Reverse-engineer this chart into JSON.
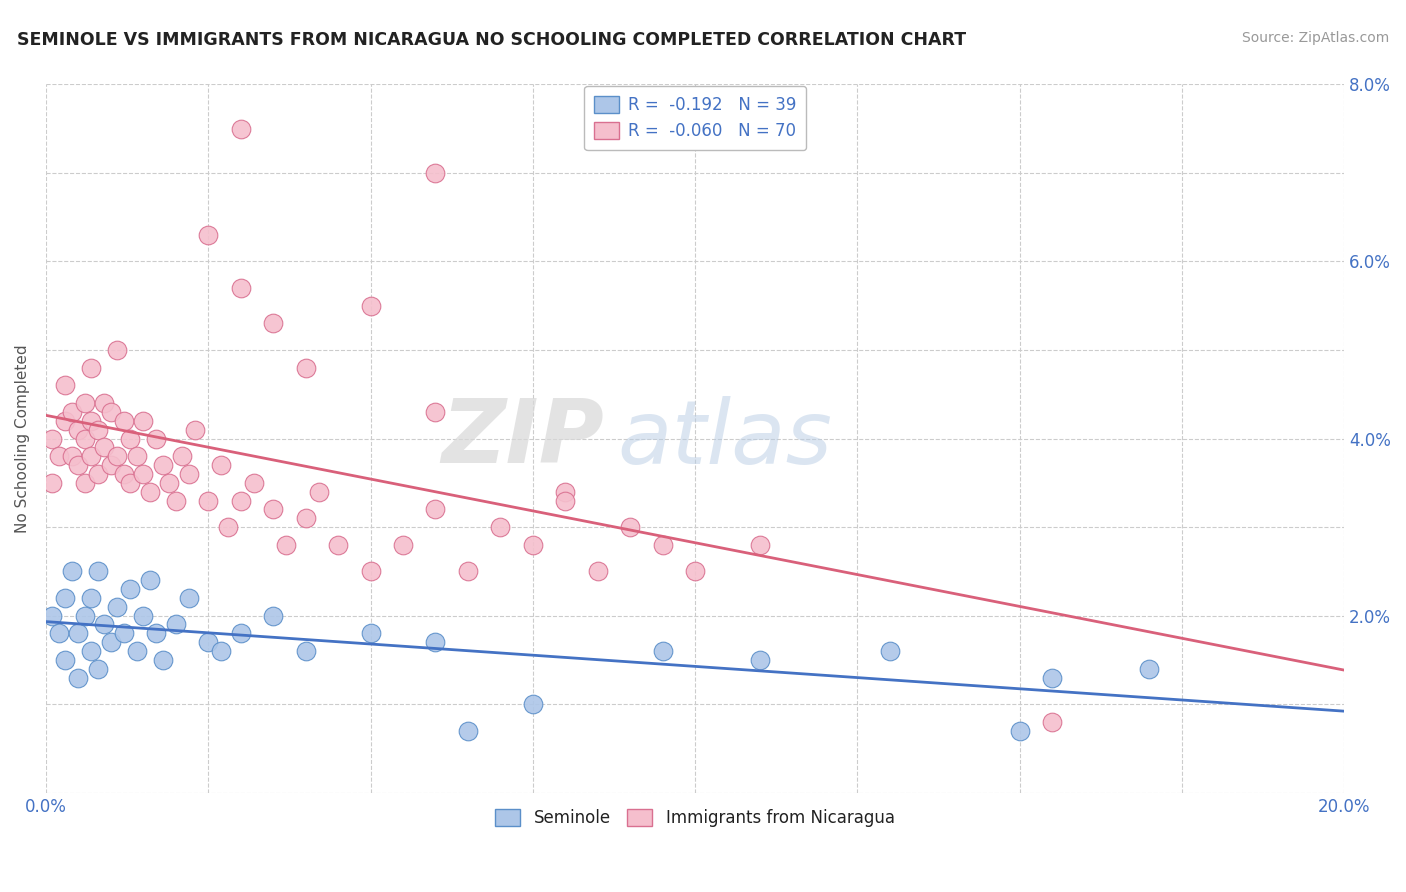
{
  "title": "SEMINOLE VS IMMIGRANTS FROM NICARAGUA NO SCHOOLING COMPLETED CORRELATION CHART",
  "source": "Source: ZipAtlas.com",
  "ylabel": "No Schooling Completed",
  "xlim": [
    0,
    0.2
  ],
  "ylim": [
    0,
    0.08
  ],
  "series1_name": "Seminole",
  "series1_color": "#adc6e8",
  "series1_edge_color": "#5b8fc9",
  "series1_line_color": "#4472c4",
  "series1_R": -0.192,
  "series1_N": 39,
  "series2_name": "Immigrants from Nicaragua",
  "series2_color": "#f5bfcd",
  "series2_edge_color": "#d97090",
  "series2_line_color": "#d9607a",
  "series2_R": -0.06,
  "series2_N": 70,
  "watermark_zip": "ZIP",
  "watermark_atlas": "atlas",
  "background_color": "#ffffff",
  "series1_x": [
    0.001,
    0.002,
    0.003,
    0.003,
    0.004,
    0.005,
    0.005,
    0.006,
    0.007,
    0.007,
    0.008,
    0.008,
    0.009,
    0.01,
    0.011,
    0.012,
    0.013,
    0.014,
    0.015,
    0.016,
    0.017,
    0.018,
    0.02,
    0.022,
    0.025,
    0.027,
    0.03,
    0.035,
    0.04,
    0.05,
    0.06,
    0.065,
    0.075,
    0.095,
    0.11,
    0.13,
    0.15,
    0.155,
    0.17
  ],
  "series1_y": [
    0.02,
    0.018,
    0.022,
    0.015,
    0.025,
    0.018,
    0.013,
    0.02,
    0.016,
    0.022,
    0.014,
    0.025,
    0.019,
    0.017,
    0.021,
    0.018,
    0.023,
    0.016,
    0.02,
    0.024,
    0.018,
    0.015,
    0.019,
    0.022,
    0.017,
    0.016,
    0.018,
    0.02,
    0.016,
    0.018,
    0.017,
    0.007,
    0.01,
    0.016,
    0.015,
    0.016,
    0.007,
    0.013,
    0.014
  ],
  "series2_x": [
    0.001,
    0.001,
    0.002,
    0.003,
    0.003,
    0.004,
    0.004,
    0.005,
    0.005,
    0.006,
    0.006,
    0.006,
    0.007,
    0.007,
    0.007,
    0.008,
    0.008,
    0.009,
    0.009,
    0.01,
    0.01,
    0.011,
    0.011,
    0.012,
    0.012,
    0.013,
    0.013,
    0.014,
    0.015,
    0.015,
    0.016,
    0.017,
    0.018,
    0.019,
    0.02,
    0.021,
    0.022,
    0.023,
    0.025,
    0.027,
    0.028,
    0.03,
    0.032,
    0.035,
    0.037,
    0.04,
    0.042,
    0.045,
    0.05,
    0.055,
    0.06,
    0.065,
    0.07,
    0.075,
    0.08,
    0.085,
    0.09,
    0.095,
    0.1,
    0.11,
    0.025,
    0.03,
    0.035,
    0.04,
    0.05,
    0.06,
    0.08,
    0.155,
    0.03,
    0.06
  ],
  "series2_y": [
    0.035,
    0.04,
    0.038,
    0.042,
    0.046,
    0.038,
    0.043,
    0.041,
    0.037,
    0.035,
    0.04,
    0.044,
    0.038,
    0.042,
    0.048,
    0.036,
    0.041,
    0.039,
    0.044,
    0.037,
    0.043,
    0.038,
    0.05,
    0.036,
    0.042,
    0.04,
    0.035,
    0.038,
    0.042,
    0.036,
    0.034,
    0.04,
    0.037,
    0.035,
    0.033,
    0.038,
    0.036,
    0.041,
    0.033,
    0.037,
    0.03,
    0.033,
    0.035,
    0.032,
    0.028,
    0.031,
    0.034,
    0.028,
    0.025,
    0.028,
    0.032,
    0.025,
    0.03,
    0.028,
    0.034,
    0.025,
    0.03,
    0.028,
    0.025,
    0.028,
    0.063,
    0.057,
    0.053,
    0.048,
    0.055,
    0.043,
    0.033,
    0.008,
    0.075,
    0.07
  ]
}
